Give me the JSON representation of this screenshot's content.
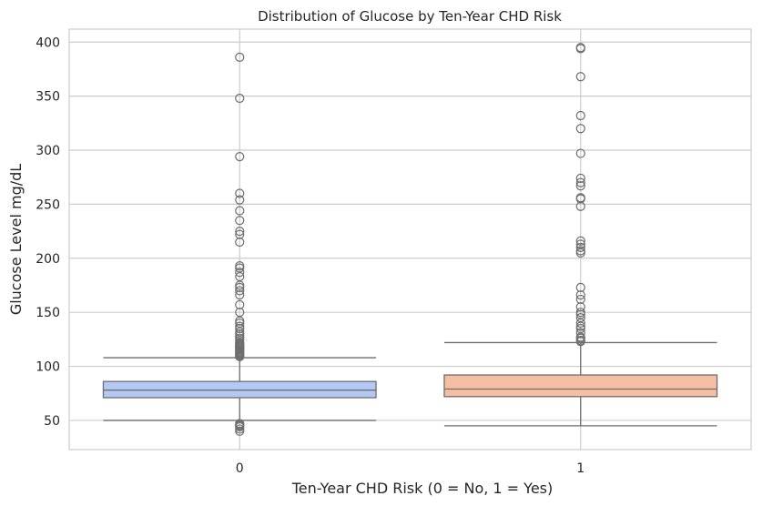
{
  "chart_data": {
    "type": "box",
    "title": "Distribution of Glucose by Ten-Year CHD Risk",
    "xlabel": "Ten-Year CHD Risk (0 = No, 1 = Yes)",
    "ylabel": "Glucose Level mg/dL",
    "ylim": [
      23,
      412
    ],
    "yticks": [
      50,
      100,
      150,
      200,
      250,
      300,
      350,
      400
    ],
    "grid": true,
    "colors": {
      "box_0": "#b4c8f5",
      "box_1": "#f5bfa3",
      "line": "#6e6e6e",
      "grid": "#cccccc"
    },
    "categories": [
      "0",
      "1"
    ],
    "boxes": [
      {
        "category": "0",
        "whisker_low": 50,
        "q1": 71,
        "median": 78,
        "q3": 86,
        "whisker_high": 108,
        "outliers": [
          40,
          42,
          44,
          45,
          46,
          47,
          109,
          110,
          111,
          112,
          113,
          114,
          115,
          116,
          117,
          118,
          119,
          120,
          121,
          122,
          124,
          126,
          128,
          130,
          132,
          135,
          137,
          140,
          142,
          150,
          157,
          166,
          170,
          173,
          175,
          183,
          187,
          191,
          193,
          215,
          222,
          225,
          235,
          244,
          254,
          260,
          294,
          348,
          386
        ]
      },
      {
        "category": "1",
        "whisker_low": 45,
        "q1": 72,
        "median": 79,
        "q3": 92,
        "whisker_high": 122,
        "outliers": [
          123,
          124,
          126,
          127,
          131,
          135,
          137,
          140,
          145,
          148,
          150,
          155,
          162,
          166,
          173,
          205,
          207,
          210,
          213,
          216,
          248,
          255,
          256,
          267,
          270,
          274,
          297,
          320,
          332,
          368,
          394,
          395
        ]
      }
    ]
  }
}
